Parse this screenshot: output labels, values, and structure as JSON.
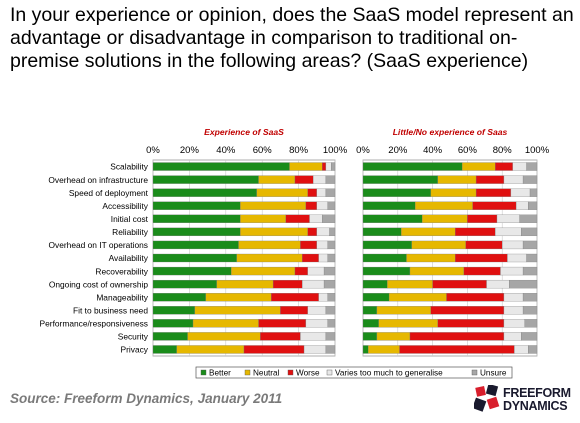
{
  "title": "In your experience or opinion, does the SaaS model represent an advantage or disadvantage in comparison to traditional on-premise solutions in the following areas? (SaaS experience)",
  "source": "Source: Freeform Dynamics, January 2011",
  "logo": {
    "line1": "FREEFORM",
    "line2": "DYNAMICS"
  },
  "chart_data": {
    "type": "bar",
    "orientation": "horizontal",
    "stacked": true,
    "percent_stacked": true,
    "categories": [
      "Scalability",
      "Overhead on infrastructure",
      "Speed of deployment",
      "Accessibility",
      "Initial cost",
      "Reliability",
      "Overhead on IT operations",
      "Availability",
      "Recoverability",
      "Ongoing cost of ownership",
      "Manageability",
      "Fit to business need",
      "Performance/responsiveness",
      "Security",
      "Privacy"
    ],
    "xlim": [
      0,
      100
    ],
    "x_ticks": [
      "0%",
      "20%",
      "40%",
      "60%",
      "80%",
      "100%"
    ],
    "legend": {
      "position": "bottom",
      "entries": [
        {
          "name": "Better",
          "color": "#1a8c1a"
        },
        {
          "name": "Neutral",
          "color": "#e6b800"
        },
        {
          "name": "Worse",
          "color": "#e01010"
        },
        {
          "name": "Varies too much to generalise",
          "color": "#e8e8e8"
        },
        {
          "name": "Unsure",
          "color": "#a6a6a6"
        }
      ]
    },
    "panels": [
      {
        "title": "Experience of SaaS",
        "series": [
          {
            "name": "Better",
            "values": [
              75,
              58,
              57,
              48,
              48,
              48,
              47,
              46,
              43,
              35,
              29,
              23,
              22,
              19,
              13
            ]
          },
          {
            "name": "Neutral",
            "values": [
              18,
              20,
              28,
              36,
              25,
              37,
              34,
              36,
              35,
              31,
              36,
              47,
              36,
              40,
              37
            ]
          },
          {
            "name": "Worse",
            "values": [
              2,
              10,
              5,
              6,
              13,
              5,
              9,
              9,
              7,
              16,
              26,
              15,
              26,
              22,
              33
            ]
          },
          {
            "name": "Varies too much to generalise",
            "values": [
              3,
              7,
              5,
              6,
              7,
              7,
              6,
              5,
              9,
              12,
              5,
              10,
              12,
              14,
              12
            ]
          },
          {
            "name": "Unsure",
            "values": [
              2,
              5,
              5,
              4,
              7,
              3,
              4,
              4,
              6,
              6,
              4,
              5,
              4,
              5,
              5
            ]
          }
        ]
      },
      {
        "title": "Little/No experience of Saas",
        "series": [
          {
            "name": "Better",
            "values": [
              57,
              43,
              39,
              30,
              34,
              22,
              28,
              25,
              27,
              14,
              15,
              8,
              9,
              8,
              3
            ]
          },
          {
            "name": "Neutral",
            "values": [
              19,
              22,
              26,
              33,
              26,
              31,
              31,
              28,
              31,
              26,
              33,
              31,
              34,
              19,
              18
            ]
          },
          {
            "name": "Worse",
            "values": [
              10,
              16,
              20,
              25,
              17,
              23,
              21,
              30,
              21,
              31,
              33,
              42,
              38,
              54,
              66
            ]
          },
          {
            "name": "Varies too much to generalise",
            "values": [
              8,
              11,
              11,
              7,
              13,
              15,
              12,
              11,
              13,
              13,
              11,
              11,
              12,
              10,
              8
            ]
          },
          {
            "name": "Unsure",
            "values": [
              6,
              8,
              4,
              5,
              10,
              9,
              8,
              6,
              8,
              16,
              8,
              8,
              7,
              9,
              5
            ]
          }
        ]
      }
    ]
  }
}
